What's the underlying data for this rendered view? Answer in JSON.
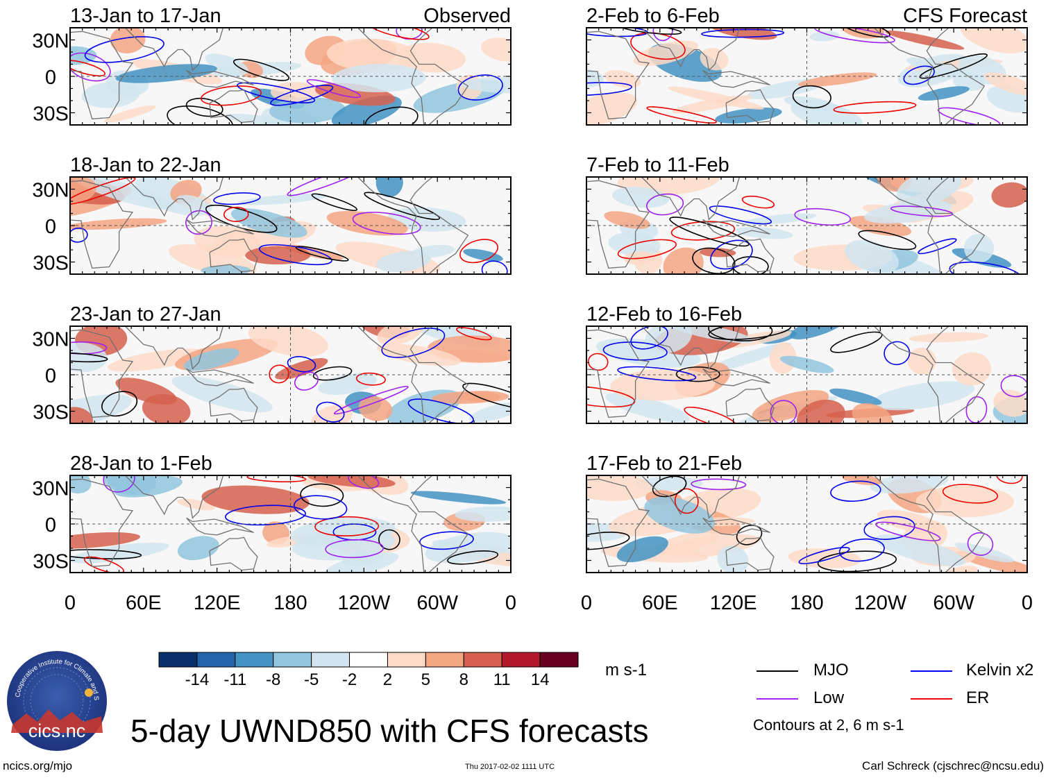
{
  "chart_data": {
    "type": "heatmap",
    "title": "5-day UWND850 with CFS forecasts",
    "variable": "UWND850",
    "units": "m s-1",
    "contour_note": "Contours at 2, 6 m s-1",
    "x_ticks": [
      "0",
      "60E",
      "120E",
      "180",
      "120W",
      "60W",
      "0"
    ],
    "y_ticks": [
      "30N",
      "0",
      "30S"
    ],
    "x_range_deg": [
      0,
      360
    ],
    "y_range_deg": [
      -40,
      40
    ],
    "colorbar": {
      "labels": [
        "-14",
        "-11",
        "-8",
        "-5",
        "-2",
        "2",
        "5",
        "8",
        "11",
        "14"
      ],
      "colors": [
        "#08306b",
        "#2166ac",
        "#4393c3",
        "#92c5de",
        "#d1e5f0",
        "#ffffff",
        "#fddbc7",
        "#f4a582",
        "#d6604d",
        "#b2182b",
        "#67001f"
      ]
    },
    "legend": [
      {
        "label": "MJO",
        "color": "#000000"
      },
      {
        "label": "Kelvin x2",
        "color": "#0000ee"
      },
      {
        "label": "Low",
        "color": "#a020f0"
      },
      {
        "label": "ER",
        "color": "#ee0000"
      }
    ],
    "panels": [
      {
        "period": "13-Jan to 17-Jan",
        "tag": "Observed",
        "column": "left"
      },
      {
        "period": "18-Jan to 22-Jan",
        "tag": "",
        "column": "left"
      },
      {
        "period": "23-Jan to 27-Jan",
        "tag": "",
        "column": "left"
      },
      {
        "period": "28-Jan to 1-Feb",
        "tag": "",
        "column": "left"
      },
      {
        "period": "2-Feb to 6-Feb",
        "tag": "CFS Forecast",
        "column": "right"
      },
      {
        "period": "7-Feb to 11-Feb",
        "tag": "",
        "column": "right"
      },
      {
        "period": "12-Feb to 16-Feb",
        "tag": "",
        "column": "right"
      },
      {
        "period": "17-Feb to 21-Feb",
        "tag": "",
        "column": "right"
      }
    ]
  },
  "logo": {
    "ring_text": "Cooperative Institute for Climate and Satellites",
    "name": "cics.nc"
  },
  "footer": {
    "left": "ncics.org/mjo",
    "center": "Thu 2017-02-02 1111 UTC",
    "right": "Carl Schreck (cjschrec@ncsu.edu)"
  }
}
